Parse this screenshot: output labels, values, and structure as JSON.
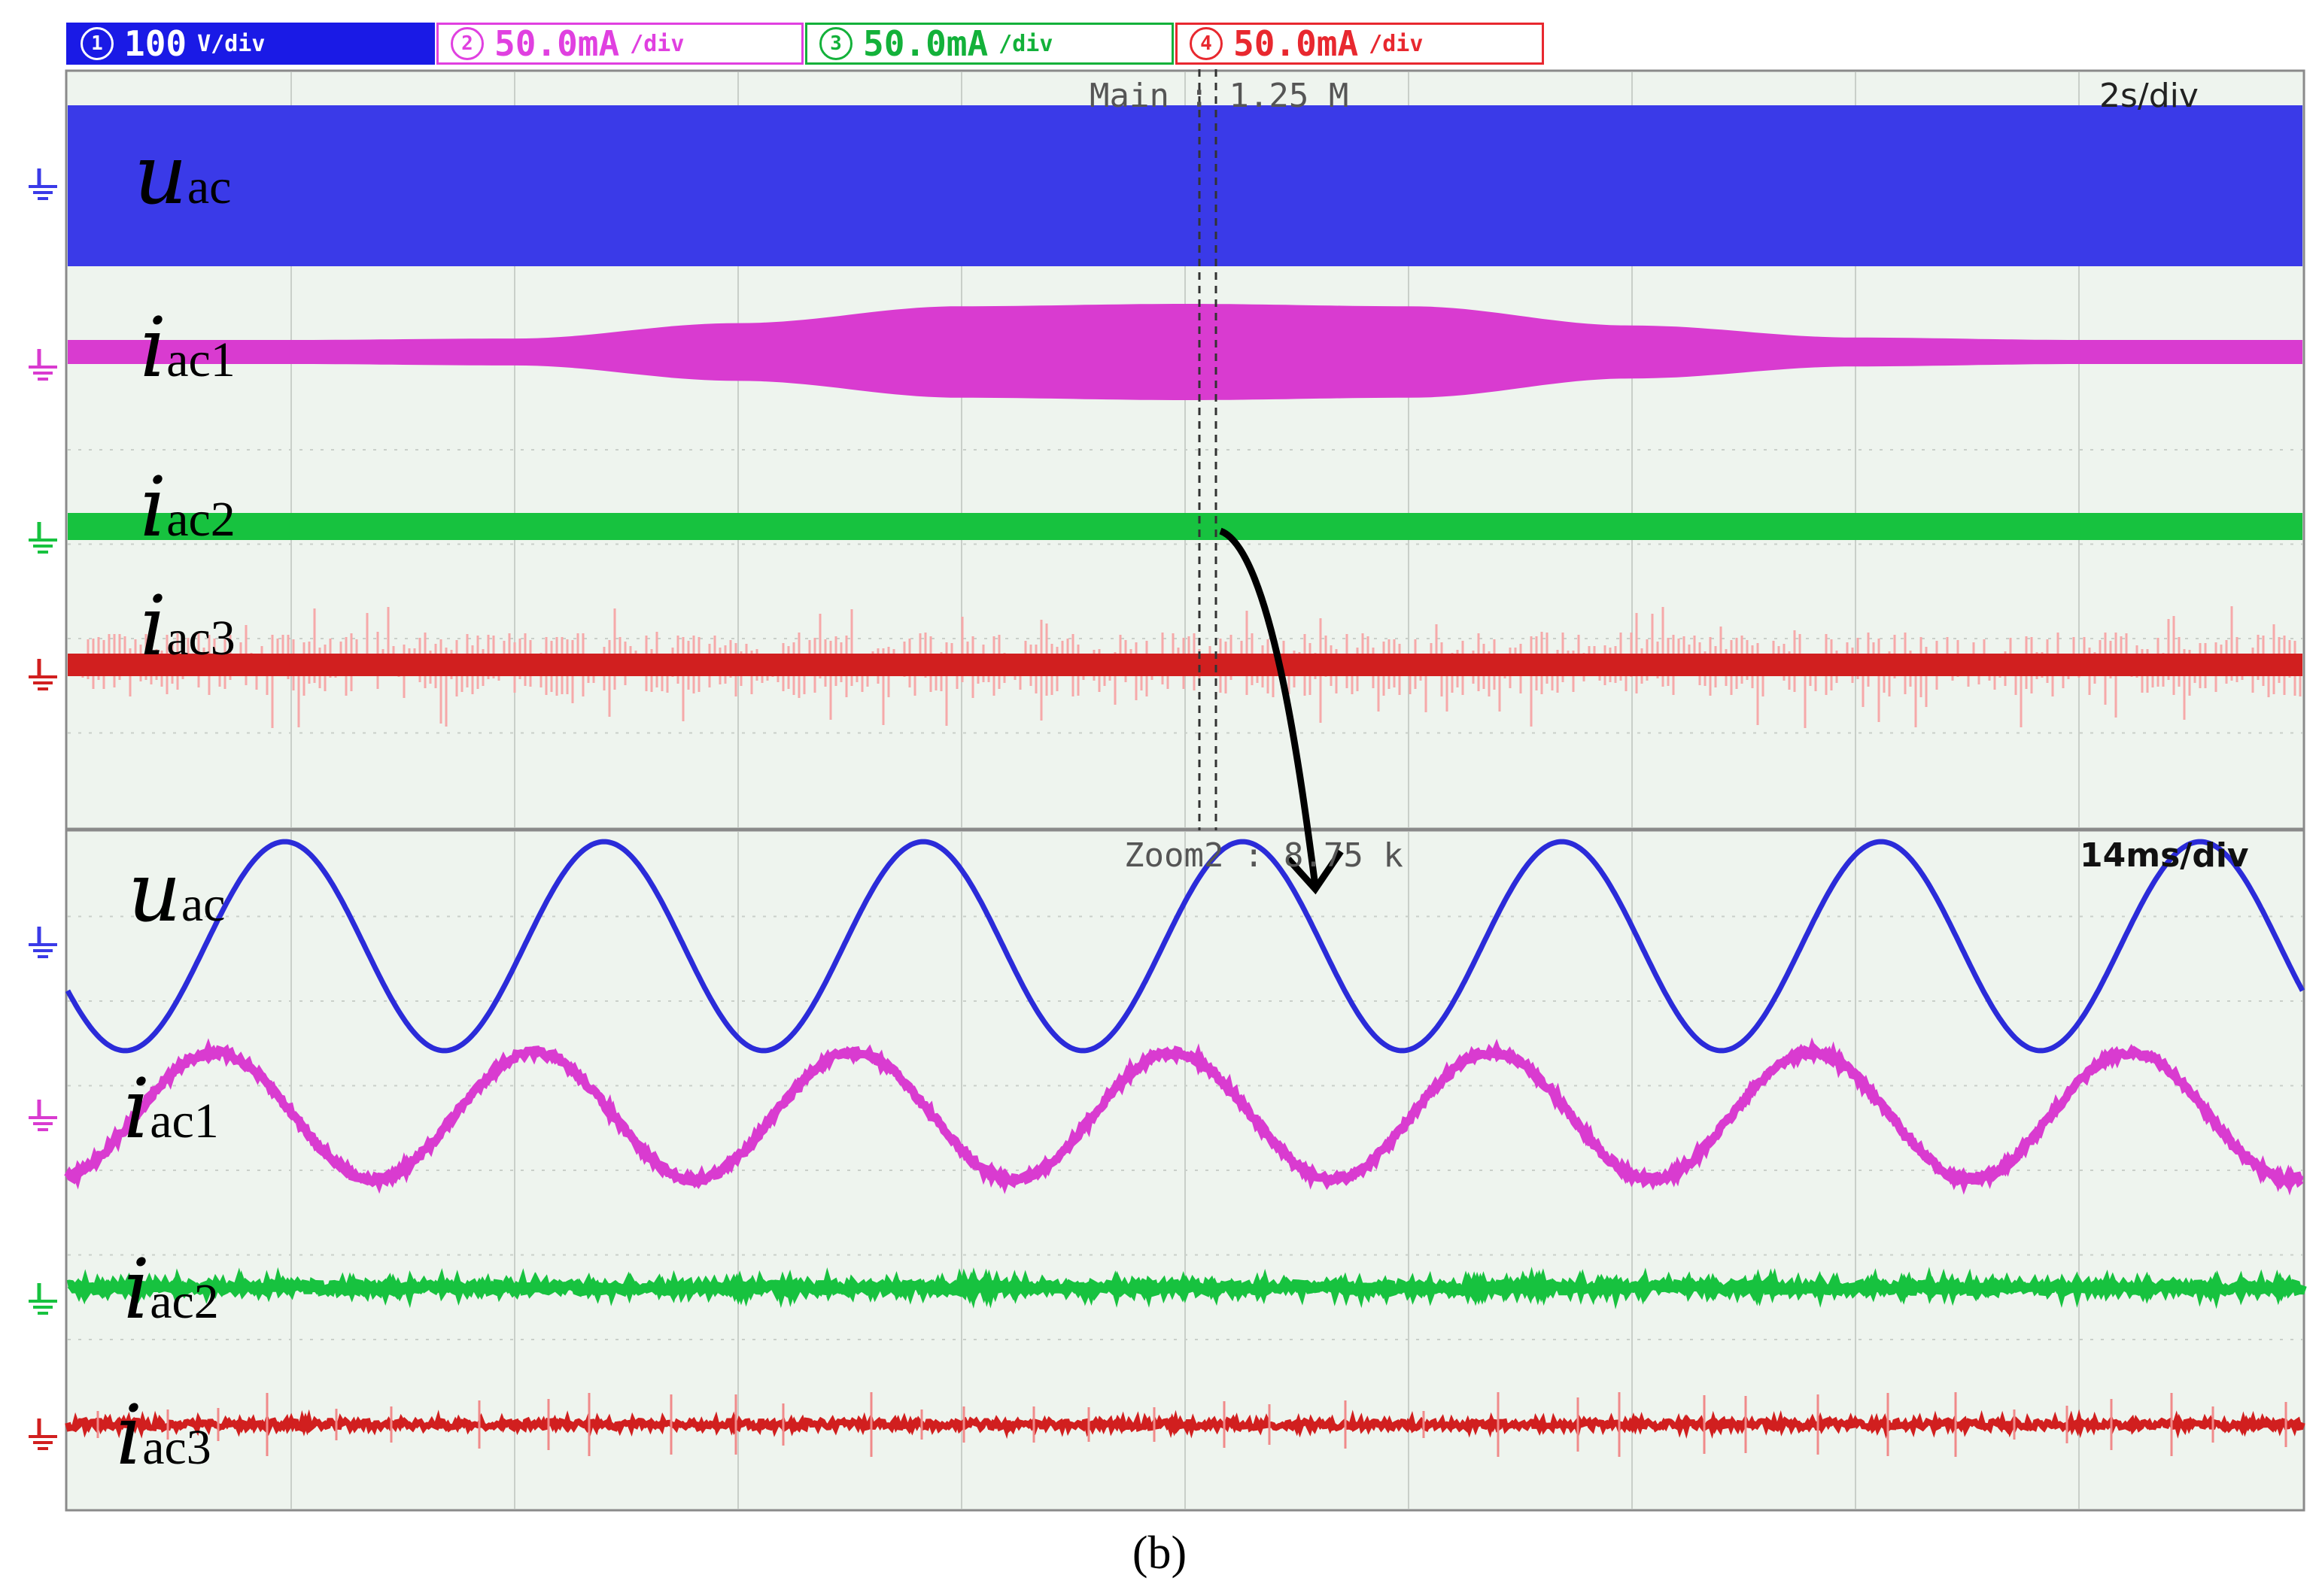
{
  "header": {
    "channels": [
      {
        "num": "1",
        "value": "100",
        "unit": "V/div",
        "color": "#1a1ae6",
        "bg": "#1a1ae6",
        "text_color": "#ffffff"
      },
      {
        "num": "2",
        "value": "50.0mA",
        "unit": "/div",
        "color": "#e040e0",
        "bg": "#ffffff",
        "text_color": "#e040e0"
      },
      {
        "num": "3",
        "value": "50.0mA",
        "unit": "/div",
        "color": "#13b13a",
        "bg": "#ffffff",
        "text_color": "#13b13a"
      },
      {
        "num": "4",
        "value": "50.0mA",
        "unit": "/div",
        "color": "#e8282f",
        "bg": "#ffffff",
        "text_color": "#e8282f"
      }
    ]
  },
  "main_panel": {
    "info": "Main : 1.25 M",
    "timebase": "2s/div"
  },
  "zoom_panel": {
    "info": "Zoom2 : 8.75 k",
    "timebase": "14ms/div"
  },
  "labels": {
    "uac_base": "u",
    "uac_sub": "ac",
    "iac1_base": "i",
    "iac1_sub": "ac1",
    "iac2_base": "i",
    "iac2_sub": "ac2",
    "iac3_base": "i",
    "iac3_sub": "ac3"
  },
  "caption": "(b)",
  "colors": {
    "uac": "#2b2bd9",
    "uac_main": "#3a3ae8",
    "iac1": "#d93bd0",
    "iac2": "#17c23f",
    "iac3": "#d11f1f",
    "iac3_noise": "#f6a9a9",
    "grid": "#c9cfc9",
    "background": "#eef4ee"
  },
  "chart_data": [
    {
      "type": "line",
      "panel": "main",
      "title": "",
      "xlabel": "",
      "ylabel": "",
      "grid": true,
      "x_divisions": 10,
      "x_per_div": "2s",
      "series": [
        {
          "name": "uac",
          "description": "solid envelope band",
          "envelope_relative": [
            1.0,
            1.0
          ]
        },
        {
          "name": "iac1",
          "envelope_relative": [
            0.25,
            0.25,
            0.28,
            0.6,
            0.95,
            1.0,
            0.95,
            0.55,
            0.3,
            0.25,
            0.25
          ]
        },
        {
          "name": "iac2",
          "envelope_relative": [
            0.18,
            0.18,
            0.18,
            0.18,
            0.18,
            0.18,
            0.18,
            0.18,
            0.18,
            0.18,
            0.18
          ]
        },
        {
          "name": "iac3",
          "envelope_relative": [
            0.15,
            0.15,
            0.15,
            0.15,
            0.15,
            0.15,
            0.15,
            0.15,
            0.15,
            0.15,
            0.15
          ]
        }
      ]
    },
    {
      "type": "line",
      "panel": "zoom",
      "title": "",
      "xlabel": "",
      "ylabel": "",
      "grid": true,
      "x_divisions": 10,
      "x_per_div": "14ms",
      "cycles_visible": 7,
      "series": [
        {
          "name": "uac",
          "amplitude_div": 1.3,
          "phase_cycles": 0.57
        },
        {
          "name": "iac1",
          "amplitude_div": 0.75,
          "phase_cycles": 0.79
        },
        {
          "name": "iac2",
          "amplitude_div": 0.0
        },
        {
          "name": "iac3",
          "amplitude_div": 0.0
        }
      ]
    }
  ]
}
